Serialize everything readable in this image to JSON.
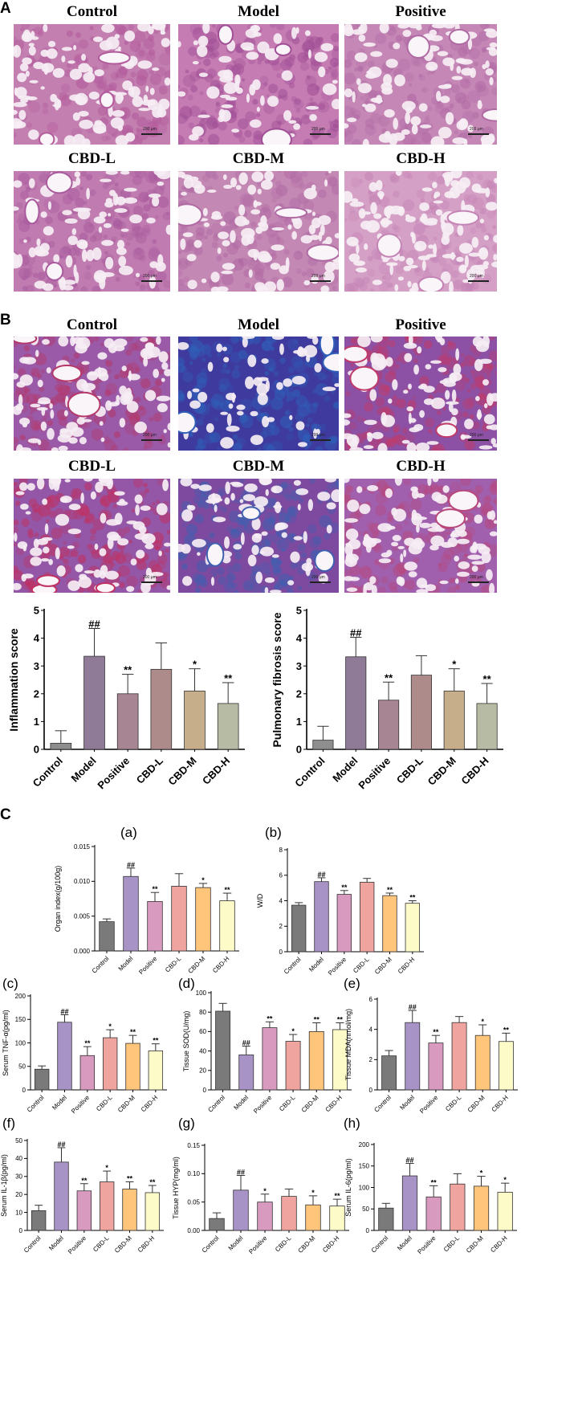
{
  "panels": {
    "A": {
      "letter": "A",
      "images": [
        {
          "title": "Control",
          "tint": [
            "#e9c6dc",
            "#c27fb0",
            "#b35a9c"
          ],
          "density": 0.45,
          "scale": "200 μm"
        },
        {
          "title": "Model",
          "tint": [
            "#e6bcd8",
            "#c57cb3",
            "#a04f96"
          ],
          "density": 0.75,
          "scale": "200 μm"
        },
        {
          "title": "Positive",
          "tint": [
            "#ecc9de",
            "#c587b6",
            "#b06aa4"
          ],
          "density": 0.5,
          "scale": "200 μm"
        },
        {
          "title": "CBD-L",
          "tint": [
            "#e9c2da",
            "#c07cb0",
            "#a85a9d"
          ],
          "density": 0.6,
          "scale": "200 μm"
        },
        {
          "title": "CBD-M",
          "tint": [
            "#eac7dc",
            "#c488b5",
            "#b06aa3"
          ],
          "density": 0.55,
          "scale": "200 μm"
        },
        {
          "title": "CBD-H",
          "tint": [
            "#efd2e3",
            "#d5a0c6",
            "#c483b5"
          ],
          "density": 0.4,
          "scale": "200 μm"
        }
      ]
    },
    "B": {
      "letter": "B",
      "images": [
        {
          "title": "Control",
          "tint": [
            "#dcc7e0",
            "#9a5aa8",
            "#b4386a"
          ],
          "density": 0.5,
          "scale": "200 μm"
        },
        {
          "title": "Model",
          "tint": [
            "#c7b8dc",
            "#3f3a9e",
            "#2f5fb8"
          ],
          "density": 0.8,
          "scale": "200 μm"
        },
        {
          "title": "Positive",
          "tint": [
            "#dccde2",
            "#8c50a4",
            "#c03a6a"
          ],
          "density": 0.55,
          "scale": "200 μm"
        },
        {
          "title": "CBD-L",
          "tint": [
            "#dcc9e0",
            "#9456a6",
            "#c03060"
          ],
          "density": 0.6,
          "scale": "200 μm"
        },
        {
          "title": "CBD-M",
          "tint": [
            "#dbd0e2",
            "#7d4aa0",
            "#3f5fb0"
          ],
          "density": 0.65,
          "scale": "200 μm"
        },
        {
          "title": "CBD-H",
          "tint": [
            "#e0d2e4",
            "#a060ae",
            "#b8487c"
          ],
          "density": 0.5,
          "scale": "200 μm"
        }
      ]
    },
    "C": {
      "letter": "C"
    }
  },
  "chart_data": [
    {
      "id": "inflammation",
      "type": "bar",
      "ylabel": "Inflammation score",
      "ylim": [
        0,
        5
      ],
      "yticks": [
        "0",
        "1",
        "2",
        "3",
        "4",
        "5"
      ],
      "categories": [
        "Control",
        "Model",
        "Positive",
        "CBD-L",
        "CBD-M",
        "CBD-H"
      ],
      "values": [
        0.22,
        3.35,
        2.0,
        2.88,
        2.1,
        1.65
      ],
      "errors": [
        0.45,
        1.0,
        0.7,
        0.95,
        0.8,
        0.75
      ],
      "annotations": [
        "",
        "##",
        "**",
        "",
        "*",
        "**"
      ],
      "colors": [
        "#8e8e8e",
        "#8f7b98",
        "#a88592",
        "#ae8b8b",
        "#c5ae89",
        "#b7bba4"
      ],
      "grid": false
    },
    {
      "id": "fibrosis",
      "type": "bar",
      "ylabel": "Pulmonary fibrosis score",
      "ylim": [
        0,
        5
      ],
      "yticks": [
        "0",
        "1",
        "2",
        "3",
        "4",
        "5"
      ],
      "categories": [
        "Control",
        "Model",
        "Positive",
        "CBD-L",
        "CBD-M",
        "CBD-H"
      ],
      "values": [
        0.33,
        3.33,
        1.77,
        2.67,
        2.1,
        1.65
      ],
      "errors": [
        0.5,
        0.7,
        0.65,
        0.7,
        0.8,
        0.72
      ],
      "annotations": [
        "",
        "##",
        "**",
        "",
        "*",
        "**"
      ],
      "colors": [
        "#8e8e8e",
        "#8f7b98",
        "#a88592",
        "#ae8b8b",
        "#c5ae89",
        "#b7bba4"
      ],
      "grid": false
    },
    {
      "id": "organ-index",
      "label": "(a)",
      "type": "bar",
      "ylabel": "Organ index(g/100g)",
      "ylim": [
        0,
        0.015
      ],
      "yticks": [
        "0.000",
        "0.005",
        "0.010",
        "0.015"
      ],
      "categories": [
        "Control",
        "Model",
        "Positive",
        "CBD-L",
        "CBD-M",
        "CBD-H"
      ],
      "values": [
        0.0042,
        0.0107,
        0.0071,
        0.0093,
        0.0091,
        0.0072
      ],
      "errors": [
        0.0004,
        0.0012,
        0.0013,
        0.0018,
        0.0006,
        0.0011
      ],
      "annotations": [
        "",
        "##",
        "**",
        "",
        "*",
        "**"
      ],
      "colors": [
        "#7a7a7a",
        "#a893c6",
        "#d99ac0",
        "#f0a4a0",
        "#ffc57a",
        "#fdfbc8"
      ],
      "grid": false
    },
    {
      "id": "wd",
      "label": "(b)",
      "type": "bar",
      "ylabel": "W/D",
      "ylim": [
        0,
        8
      ],
      "yticks": [
        "0",
        "2",
        "4",
        "6",
        "8"
      ],
      "categories": [
        "Control",
        "Model",
        "Positive",
        "CBD-L",
        "CBD-M",
        "CBD-H"
      ],
      "values": [
        3.65,
        5.5,
        4.5,
        5.45,
        4.4,
        3.8
      ],
      "errors": [
        0.2,
        0.3,
        0.3,
        0.3,
        0.2,
        0.2
      ],
      "annotations": [
        "",
        "##",
        "**",
        "",
        "**",
        "**"
      ],
      "colors": [
        "#7a7a7a",
        "#a893c6",
        "#d99ac0",
        "#f0a4a0",
        "#ffc57a",
        "#fdfbc8"
      ],
      "grid": false
    },
    {
      "id": "tnf",
      "label": "(c)",
      "type": "bar",
      "ylabel": "Serum TNF-α(pg/ml)",
      "ylim": [
        0,
        200
      ],
      "yticks": [
        "0",
        "50",
        "100",
        "150",
        "200"
      ],
      "categories": [
        "Control",
        "Model",
        "Positive",
        "CBD-L",
        "CBD-M",
        "CBD-H"
      ],
      "values": [
        44,
        144,
        73,
        111,
        99,
        83
      ],
      "errors": [
        7,
        16,
        19,
        17,
        17,
        15
      ],
      "annotations": [
        "",
        "##",
        "**",
        "*",
        "**",
        "**"
      ],
      "colors": [
        "#7a7a7a",
        "#a893c6",
        "#d99ac0",
        "#f0a4a0",
        "#ffc57a",
        "#fdfbc8"
      ],
      "grid": false
    },
    {
      "id": "sod",
      "label": "(d)",
      "type": "bar",
      "ylabel": "Tissue SOD(U/mg)",
      "ylim": [
        0,
        100
      ],
      "yticks": [
        "0",
        "20",
        "40",
        "60",
        "80",
        "100"
      ],
      "categories": [
        "Control",
        "Model",
        "Positive",
        "CBD-L",
        "CBD-M",
        "CBD-H"
      ],
      "values": [
        81,
        36,
        64,
        50,
        60,
        62
      ],
      "errors": [
        8,
        9,
        6,
        7,
        9,
        7
      ],
      "annotations": [
        "",
        "##",
        "**",
        "*",
        "**",
        "**"
      ],
      "colors": [
        "#7a7a7a",
        "#a893c6",
        "#d99ac0",
        "#f0a4a0",
        "#ffc57a",
        "#fdfbc8"
      ],
      "grid": false
    },
    {
      "id": "mda",
      "label": "(e)",
      "type": "bar",
      "ylabel": "Tissue MDA(nmol/mg)",
      "ylim": [
        0,
        6
      ],
      "yticks": [
        "0",
        "2",
        "4",
        "6"
      ],
      "categories": [
        "Control",
        "Model",
        "Positive",
        "CBD-L",
        "CBD-M",
        "CBD-H"
      ],
      "values": [
        2.25,
        4.45,
        3.1,
        4.45,
        3.6,
        3.2
      ],
      "errors": [
        0.35,
        0.8,
        0.5,
        0.4,
        0.7,
        0.55
      ],
      "annotations": [
        "",
        "##",
        "**",
        "",
        "*",
        "**"
      ],
      "colors": [
        "#7a7a7a",
        "#a893c6",
        "#d99ac0",
        "#f0a4a0",
        "#ffc57a",
        "#fdfbc8"
      ],
      "grid": false
    },
    {
      "id": "il1b",
      "label": "(f)",
      "type": "bar",
      "ylabel": "Serum IL-1β(pg/ml)",
      "ylim": [
        0,
        50
      ],
      "yticks": [
        "0",
        "10",
        "20",
        "30",
        "40",
        "50"
      ],
      "categories": [
        "Control",
        "Model",
        "Positive",
        "CBD-L",
        "CBD-M",
        "CBD-H"
      ],
      "values": [
        11,
        38,
        22,
        27,
        23,
        21
      ],
      "errors": [
        3,
        8,
        4,
        6,
        4,
        4
      ],
      "annotations": [
        "",
        "##",
        "**",
        "*",
        "**",
        "**"
      ],
      "colors": [
        "#7a7a7a",
        "#a893c6",
        "#d99ac0",
        "#f0a4a0",
        "#ffc57a",
        "#fdfbc8"
      ],
      "grid": false
    },
    {
      "id": "hyp",
      "label": "(g)",
      "type": "bar",
      "ylabel": "Tissue HYP(mg/ml)",
      "ylim": [
        0,
        0.15
      ],
      "yticks": [
        "0.00",
        "0.05",
        "0.10",
        "0.15"
      ],
      "categories": [
        "Control",
        "Model",
        "Positive",
        "CBD-L",
        "CBD-M",
        "CBD-H"
      ],
      "values": [
        0.021,
        0.071,
        0.05,
        0.06,
        0.045,
        0.043
      ],
      "errors": [
        0.01,
        0.026,
        0.014,
        0.013,
        0.016,
        0.012
      ],
      "annotations": [
        "",
        "##",
        "*",
        "",
        "*",
        "**"
      ],
      "colors": [
        "#7a7a7a",
        "#a893c6",
        "#d99ac0",
        "#f0a4a0",
        "#ffc57a",
        "#fdfbc8"
      ],
      "grid": false
    },
    {
      "id": "il6",
      "label": "(h)",
      "type": "bar",
      "ylabel": "Serum IL-6(pg/ml)",
      "ylim": [
        0,
        200
      ],
      "yticks": [
        "0",
        "50",
        "100",
        "150",
        "200"
      ],
      "categories": [
        "Control",
        "Model",
        "Positive",
        "CBD-L",
        "CBD-M",
        "CBD-H"
      ],
      "values": [
        52,
        127,
        78,
        108,
        103,
        89
      ],
      "errors": [
        11,
        29,
        26,
        24,
        23,
        21
      ],
      "annotations": [
        "",
        "##",
        "**",
        "",
        "*",
        "*"
      ],
      "colors": [
        "#7a7a7a",
        "#a893c6",
        "#d99ac0",
        "#f0a4a0",
        "#ffc57a",
        "#fdfbc8"
      ],
      "grid": false
    }
  ]
}
